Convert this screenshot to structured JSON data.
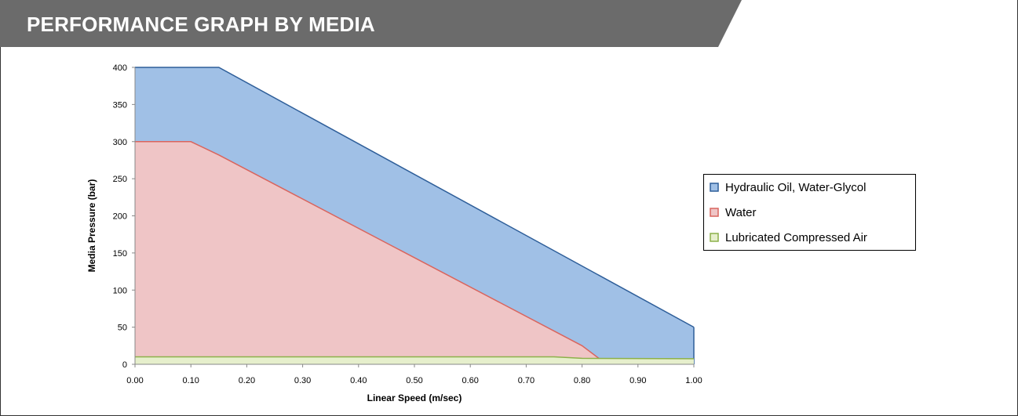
{
  "header": {
    "title": "PERFORMANCE GRAPH BY MEDIA"
  },
  "colors": {
    "header_bg": "#6b6b6b",
    "axis": "#888888"
  },
  "chart_data": {
    "type": "area",
    "title": "",
    "xlabel": "Linear Speed (m/sec)",
    "ylabel": "Media Pressure (bar)",
    "xlim": [
      0,
      1
    ],
    "ylim": [
      0,
      400
    ],
    "x_ticks": [
      "0.00",
      "0.10",
      "0.20",
      "0.30",
      "0.40",
      "0.50",
      "0.60",
      "0.70",
      "0.80",
      "0.90",
      "1.00"
    ],
    "y_ticks": [
      "0",
      "50",
      "100",
      "150",
      "200",
      "250",
      "300",
      "350",
      "400"
    ],
    "grid": false,
    "legend_position": "right",
    "series": [
      {
        "name": "Hydraulic Oil, Water-Glycol",
        "fill": "#a0c0e6",
        "stroke": "#2e5e99",
        "points": [
          [
            0,
            400
          ],
          [
            0.15,
            400
          ],
          [
            1.0,
            50
          ],
          [
            1.0,
            0
          ]
        ]
      },
      {
        "name": "Water",
        "fill": "#efc5c6",
        "stroke": "#d9655e",
        "points": [
          [
            0,
            300
          ],
          [
            0.1,
            300
          ],
          [
            0.15,
            282
          ],
          [
            0.8,
            25
          ],
          [
            0.83,
            8
          ]
        ]
      },
      {
        "name": "Lubricated Compressed Air",
        "fill": "#e6efcc",
        "stroke": "#8cb04a",
        "points": [
          [
            0,
            10
          ],
          [
            0.75,
            10
          ],
          [
            0.8,
            8
          ],
          [
            1.0,
            7.5
          ]
        ]
      }
    ]
  }
}
